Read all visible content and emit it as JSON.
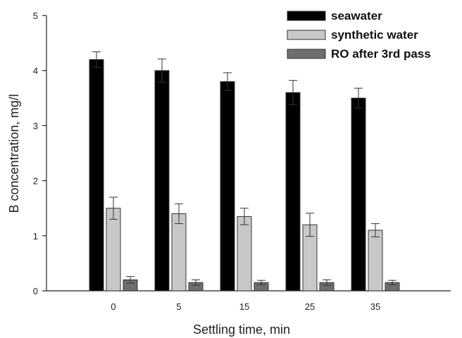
{
  "chart_data": {
    "type": "bar",
    "title": "",
    "xlabel": "Settling time, min",
    "ylabel": "B concentration, mg/l",
    "categories": [
      "0",
      "5",
      "15",
      "25",
      "35"
    ],
    "ylim": [
      0,
      5
    ],
    "yticks": [
      "0",
      "1",
      "2",
      "3",
      "4",
      "5"
    ],
    "grid": false,
    "legend_position": "top-right",
    "error_bars": true,
    "series": [
      {
        "name": "seawater",
        "color": "#000000",
        "values": [
          4.2,
          4.0,
          3.8,
          3.6,
          3.5
        ],
        "errors": [
          0.14,
          0.21,
          0.16,
          0.22,
          0.18
        ]
      },
      {
        "name": "synthetic water",
        "color": "#c8c8c8",
        "values": [
          1.5,
          1.4,
          1.35,
          1.2,
          1.1
        ],
        "errors": [
          0.2,
          0.18,
          0.15,
          0.21,
          0.12
        ]
      },
      {
        "name": "RO after 3rd pass",
        "color": "#6e6e6e",
        "values": [
          0.2,
          0.15,
          0.15,
          0.15,
          0.15
        ],
        "errors": [
          0.06,
          0.05,
          0.04,
          0.05,
          0.04
        ]
      }
    ]
  }
}
